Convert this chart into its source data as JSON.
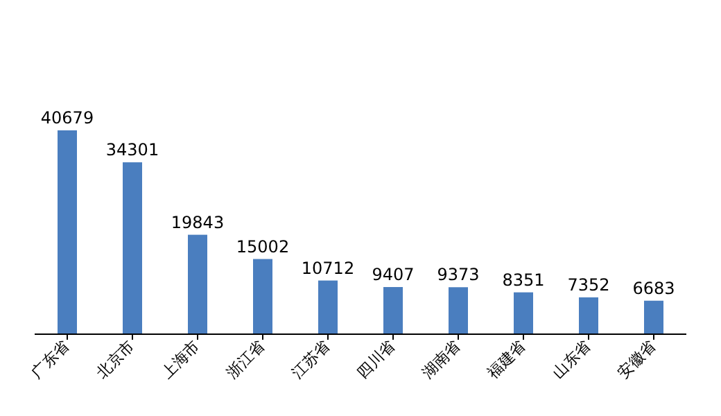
{
  "chart_data": {
    "type": "bar",
    "categories": [
      "广东省",
      "北京市",
      "上海市",
      "浙江省",
      "江苏省",
      "四川省",
      "湖南省",
      "福建省",
      "山东省",
      "安徽省"
    ],
    "values": [
      40679,
      34301,
      19843,
      15002,
      10712,
      9407,
      9373,
      8351,
      7352,
      6683
    ],
    "color": "#4a7ebf",
    "data_labels": true
  }
}
